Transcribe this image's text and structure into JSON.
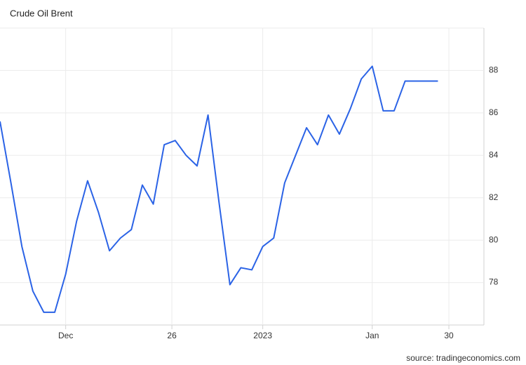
{
  "chart_data": {
    "type": "line",
    "title": "Crude Oil Brent",
    "source": "source: tradingeconomics.com",
    "series": [
      {
        "name": "Crude Oil Brent",
        "color": "#2b63e6",
        "values": [
          85.6,
          82.7,
          79.7,
          77.6,
          76.6,
          76.6,
          78.4,
          80.9,
          82.8,
          81.3,
          79.5,
          80.1,
          80.5,
          82.6,
          81.7,
          84.5,
          84.7,
          84.0,
          83.5,
          85.9,
          81.8,
          77.9,
          78.7,
          78.6,
          79.7,
          80.1,
          82.7,
          84.0,
          85.3,
          84.5,
          85.9,
          85.0,
          86.2,
          87.6,
          88.2,
          86.1,
          86.1,
          87.5,
          87.5,
          87.5,
          87.5
        ]
      }
    ],
    "xlim": [
      0,
      44.2
    ],
    "xticks": [
      {
        "value": 6,
        "label": "Dec"
      },
      {
        "value": 15.7,
        "label": "26"
      },
      {
        "value": 24,
        "label": "2023"
      },
      {
        "value": 34,
        "label": "Jan"
      },
      {
        "value": 41,
        "label": "30"
      }
    ],
    "ylim": [
      76,
      90
    ],
    "yticks": [
      78,
      80,
      82,
      84,
      86,
      88
    ],
    "grid": true
  }
}
